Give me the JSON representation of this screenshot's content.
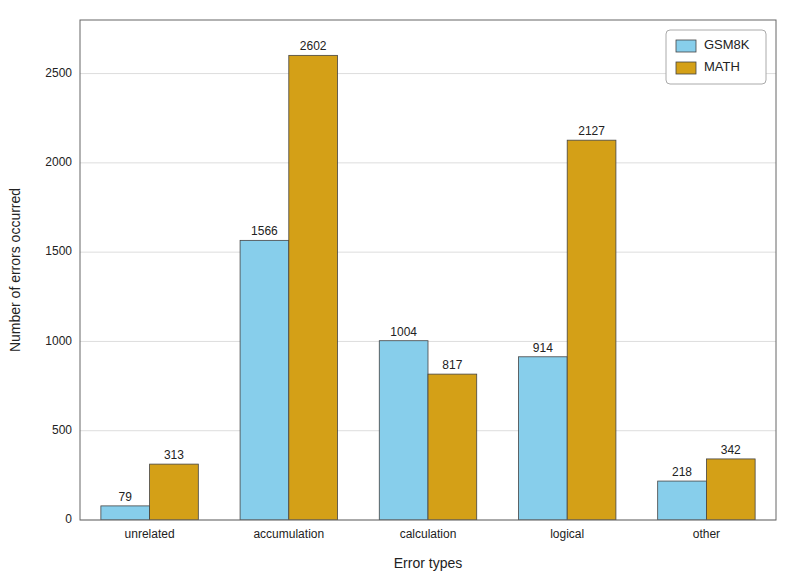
{
  "chart_data": {
    "type": "bar",
    "xlabel": "Error types",
    "ylabel": "Number of errors occurred",
    "categories": [
      "unrelated",
      "accumulation",
      "calculation",
      "logical",
      "other"
    ],
    "series": [
      {
        "name": "GSM8K",
        "color": "#87CEEB",
        "values": [
          79,
          1566,
          1004,
          914,
          218
        ]
      },
      {
        "name": "MATH",
        "color": "#D4A017",
        "values": [
          313,
          2602,
          817,
          2127,
          342
        ]
      }
    ],
    "ylim": [
      0,
      2800
    ],
    "yticks": [
      0,
      500,
      1000,
      1500,
      2000,
      2500
    ],
    "grid": true,
    "legend": "upper right",
    "data_labels": true
  }
}
